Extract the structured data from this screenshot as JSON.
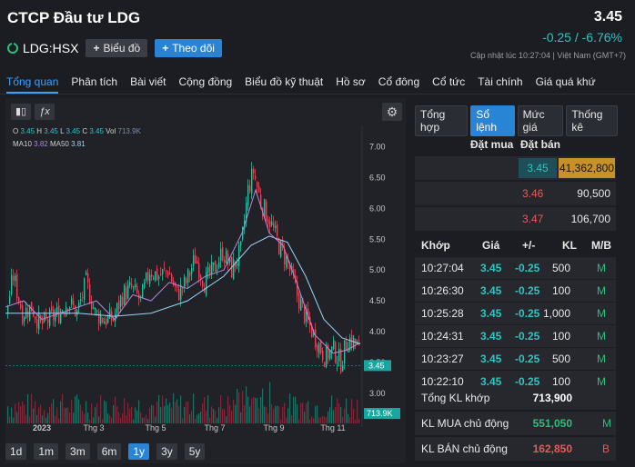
{
  "header": {
    "title": "CTCP Đầu tư LDG",
    "ticker": "LDG:HSX",
    "chart_button": "Biểu đồ",
    "follow_button": "Theo dõi",
    "price": "3.45",
    "change": "-0.25 / -6.76%",
    "updated": "Cập nhật lúc   10:27:04  |  Việt Nam (GMT+7)"
  },
  "tabs": [
    "Tổng quan",
    "Phân tích",
    "Bài viết",
    "Cộng đồng",
    "Biểu đồ kỹ thuật",
    "Hồ sơ",
    "Cổ đông",
    "Cổ tức",
    "Tài chính",
    "Giá quá khứ"
  ],
  "chart_panel": {
    "ohlc": {
      "o_label": "O",
      "o": "3.45",
      "h_label": "H",
      "h": "3.45",
      "l_label": "L",
      "l": "3.45",
      "c_label": "C",
      "c": "3.45",
      "vol_label": "Vol",
      "vol": "713.9K"
    },
    "ma": {
      "ma10_label": "MA10",
      "ma10": "3.82",
      "ma50_label": "MA50",
      "ma50": "3.81"
    },
    "ranges": [
      "1d",
      "1m",
      "3m",
      "6m",
      "1y",
      "3y",
      "5y"
    ],
    "active_range": "1y",
    "colors": {
      "up": "#2bbf9e",
      "down": "#e0455b",
      "ma10": "#b784d8",
      "ma50": "#9fd3f5",
      "price_tag": "#1aa6a0"
    }
  },
  "chart_data": {
    "type": "candlestick",
    "y_ticks": [
      "7.00",
      "6.50",
      "6.00",
      "5.50",
      "5.00",
      "4.50",
      "4.00",
      "3.50",
      "3.00"
    ],
    "ylim": [
      2.6,
      7.2
    ],
    "x_ticks": [
      "2023",
      "Thg 3",
      "Thg 5",
      "Thg 7",
      "Thg 9",
      "Thg 11"
    ],
    "current_price_label": "3.45",
    "volume_label": "713.9K",
    "close_path": [
      [
        0,
        4.3
      ],
      [
        8,
        4.9
      ],
      [
        18,
        4.3
      ],
      [
        28,
        4.4
      ],
      [
        38,
        4.1
      ],
      [
        48,
        4.2
      ],
      [
        58,
        4.3
      ],
      [
        68,
        4.5
      ],
      [
        78,
        4.3
      ],
      [
        88,
        4.8
      ],
      [
        98,
        4.3
      ],
      [
        108,
        4.2
      ],
      [
        118,
        4.2
      ],
      [
        128,
        4.6
      ],
      [
        138,
        4.7
      ],
      [
        148,
        4.5
      ],
      [
        158,
        5.0
      ],
      [
        168,
        4.9
      ],
      [
        178,
        5.0
      ],
      [
        188,
        4.6
      ],
      [
        198,
        4.8
      ],
      [
        208,
        5.2
      ],
      [
        218,
        4.8
      ],
      [
        228,
        5.0
      ],
      [
        238,
        5.3
      ],
      [
        248,
        5.0
      ],
      [
        258,
        5.3
      ],
      [
        266,
        6.3
      ],
      [
        272,
        6.6
      ],
      [
        280,
        6.1
      ],
      [
        290,
        5.8
      ],
      [
        300,
        5.4
      ],
      [
        310,
        5.1
      ],
      [
        320,
        4.6
      ],
      [
        330,
        4.2
      ],
      [
        340,
        3.9
      ],
      [
        350,
        3.6
      ],
      [
        360,
        3.7
      ],
      [
        368,
        3.5
      ],
      [
        376,
        3.9
      ],
      [
        384,
        3.8
      ],
      [
        390,
        3.7
      ]
    ],
    "ma50_path": [
      [
        0,
        4.3
      ],
      [
        40,
        4.3
      ],
      [
        80,
        4.3
      ],
      [
        120,
        4.25
      ],
      [
        160,
        4.3
      ],
      [
        200,
        4.5
      ],
      [
        240,
        4.9
      ],
      [
        270,
        5.4
      ],
      [
        290,
        5.55
      ],
      [
        310,
        5.45
      ],
      [
        330,
        4.9
      ],
      [
        350,
        4.2
      ],
      [
        370,
        3.9
      ],
      [
        390,
        3.8
      ]
    ],
    "ma10_path": [
      [
        0,
        4.4
      ],
      [
        20,
        4.5
      ],
      [
        40,
        4.2
      ],
      [
        60,
        4.3
      ],
      [
        80,
        4.4
      ],
      [
        100,
        4.5
      ],
      [
        120,
        4.2
      ],
      [
        140,
        4.6
      ],
      [
        160,
        4.5
      ],
      [
        180,
        4.8
      ],
      [
        200,
        4.7
      ],
      [
        220,
        4.9
      ],
      [
        240,
        5.0
      ],
      [
        260,
        5.6
      ],
      [
        275,
        6.3
      ],
      [
        290,
        5.6
      ],
      [
        305,
        5.4
      ],
      [
        320,
        4.8
      ],
      [
        340,
        3.95
      ],
      [
        360,
        3.65
      ],
      [
        375,
        3.7
      ],
      [
        390,
        3.82
      ]
    ]
  },
  "orderbook": {
    "tabs": [
      "Tổng hợp",
      "Sổ lệnh",
      "Mức giá",
      "Thống kê"
    ],
    "active_tab": "Sổ lệnh",
    "bid_header": "Đặt mua",
    "ask_header": "Đặt bán",
    "levels": [
      {
        "price": "3.45",
        "volume": "41,362,800",
        "price_color": "#2ec4c0",
        "highlight": true
      },
      {
        "price": "3.46",
        "volume": "90,500",
        "price_color": "#e85a5a",
        "highlight": false
      },
      {
        "price": "3.47",
        "volume": "106,700",
        "price_color": "#e85a5a",
        "highlight": false
      }
    ],
    "trade_headers": {
      "time": "Khớp",
      "price": "Giá",
      "change": "+/-",
      "volume": "KL",
      "side": "M/B"
    },
    "trades": [
      {
        "time": "10:27:04",
        "price": "3.45",
        "change": "-0.25",
        "volume": "500",
        "side": "M"
      },
      {
        "time": "10:26:30",
        "price": "3.45",
        "change": "-0.25",
        "volume": "100",
        "side": "M"
      },
      {
        "time": "10:25:28",
        "price": "3.45",
        "change": "-0.25",
        "volume": "1,000",
        "side": "M"
      },
      {
        "time": "10:24:31",
        "price": "3.45",
        "change": "-0.25",
        "volume": "100",
        "side": "M"
      },
      {
        "time": "10:23:27",
        "price": "3.45",
        "change": "-0.25",
        "volume": "500",
        "side": "M"
      },
      {
        "time": "10:22:10",
        "price": "3.45",
        "change": "-0.25",
        "volume": "100",
        "side": "M"
      }
    ],
    "summary": [
      {
        "label": "Tổng KL khớp",
        "value": "713,900",
        "side": "",
        "value_color": "#ffffff"
      },
      {
        "label": "KL MUA chủ động",
        "value": "551,050",
        "side": "M",
        "value_color": "#2bbf7a",
        "side_color": "#2bbf7a"
      },
      {
        "label": "KL BÁN chủ động",
        "value": "162,850",
        "side": "B",
        "value_color": "#e85a5a",
        "side_color": "#e85a5a"
      }
    ]
  }
}
